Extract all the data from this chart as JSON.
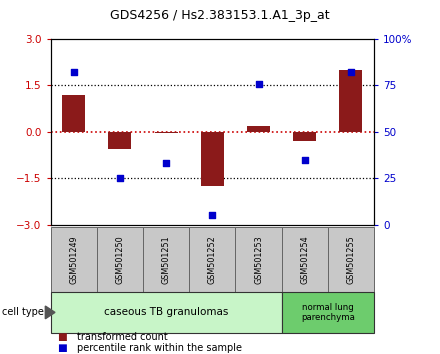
{
  "title": "GDS4256 / Hs2.383153.1.A1_3p_at",
  "samples": [
    "GSM501249",
    "GSM501250",
    "GSM501251",
    "GSM501252",
    "GSM501253",
    "GSM501254",
    "GSM501255"
  ],
  "transformed_count": [
    1.2,
    -0.55,
    -0.05,
    -1.75,
    0.2,
    -0.28,
    2.0
  ],
  "percentile_rank": [
    82,
    25,
    33,
    5,
    76,
    35,
    82
  ],
  "ylim_left": [
    -3,
    3
  ],
  "ylim_right": [
    0,
    100
  ],
  "yticks_left": [
    -3,
    -1.5,
    0,
    1.5,
    3
  ],
  "yticks_right": [
    0,
    25,
    50,
    75,
    100
  ],
  "ytick_labels_right": [
    "0",
    "25",
    "50",
    "75",
    "100%"
  ],
  "bar_color": "#8B1A1A",
  "dot_color": "#0000CC",
  "bar_width": 0.5,
  "group1_label": "caseous TB granulomas",
  "group1_n": 5,
  "group2_label": "normal lung\nparenchyma",
  "group2_n": 2,
  "group1_color": "#c8f5c8",
  "group2_color": "#6dcc6d",
  "cell_type_label": "cell type",
  "legend_red_label": "transformed count",
  "legend_blue_label": "percentile rank within the sample",
  "zero_line_color": "#cc0000",
  "hline_color": "#000000",
  "axis_color_left": "#cc0000",
  "axis_color_right": "#0000CC",
  "sample_box_color": "#c8c8c8",
  "dot_size": 18
}
